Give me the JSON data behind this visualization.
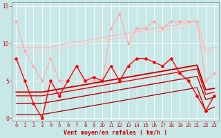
{
  "xlabel": "Vent moyen/en rafales ( km/h )",
  "bg_color": "#c8e8e8",
  "grid_color": "#ffffff",
  "xlim": [
    -0.5,
    23.5
  ],
  "ylim": [
    -0.3,
    15.5
  ],
  "yticks": [
    0,
    5,
    10,
    15
  ],
  "xticks": [
    0,
    1,
    2,
    3,
    4,
    5,
    6,
    7,
    8,
    9,
    10,
    11,
    12,
    13,
    14,
    15,
    16,
    17,
    18,
    19,
    20,
    21,
    22,
    23
  ],
  "lines": [
    {
      "x": [
        0,
        1,
        2,
        3,
        4,
        5,
        6,
        7,
        8,
        9,
        10,
        11,
        12,
        13,
        14,
        15,
        16,
        17,
        18,
        19,
        20,
        21,
        22,
        23
      ],
      "y": [
        13,
        9,
        7,
        5,
        8,
        5,
        5,
        7,
        5,
        5,
        5,
        12,
        14,
        10,
        12,
        12,
        13,
        12,
        13,
        13,
        13,
        13,
        5,
        6
      ],
      "color": "#ffaaaa",
      "lw": 0.8,
      "marker": "D",
      "ms": 1.8,
      "zorder": 3
    },
    {
      "x": [
        0,
        1,
        2,
        3,
        4,
        5,
        6,
        7,
        8,
        9,
        10,
        11,
        12,
        13,
        14,
        15,
        16,
        17,
        18,
        19,
        20,
        21,
        22,
        23
      ],
      "y": [
        9.5,
        9.5,
        9.5,
        9.5,
        9.5,
        9.8,
        10.0,
        10.2,
        10.4,
        10.6,
        10.8,
        11.0,
        11.2,
        11.4,
        11.6,
        11.8,
        12.0,
        12.2,
        12.4,
        12.6,
        12.8,
        13.0,
        9.0,
        9.5
      ],
      "color": "#ffbbbb",
      "lw": 1.0,
      "marker": null,
      "ms": 0,
      "zorder": 2
    },
    {
      "x": [
        0,
        1,
        2,
        3,
        4,
        5,
        6,
        7,
        8,
        9,
        10,
        11,
        12,
        13,
        14,
        15,
        16,
        17,
        18,
        19,
        20,
        21,
        22,
        23
      ],
      "y": [
        9.0,
        9.0,
        9.0,
        9.0,
        9.0,
        9.3,
        9.5,
        9.7,
        9.9,
        10.1,
        10.3,
        10.5,
        10.7,
        10.9,
        11.1,
        11.3,
        11.5,
        11.7,
        11.9,
        12.1,
        12.3,
        12.5,
        8.5,
        9.0
      ],
      "color": "#ffcccc",
      "lw": 0.8,
      "marker": null,
      "ms": 0,
      "zorder": 2
    },
    {
      "x": [
        0,
        1,
        2,
        3,
        4,
        5,
        6,
        7,
        8,
        9,
        10,
        11,
        12,
        13,
        14,
        15,
        16,
        17,
        18,
        19,
        20,
        21,
        22,
        23
      ],
      "y": [
        8,
        5,
        2,
        0,
        5,
        3,
        5,
        7,
        5,
        5.5,
        5,
        7,
        5,
        7,
        8,
        8,
        7.5,
        7,
        8,
        6,
        5,
        3,
        1,
        3
      ],
      "color": "#ff0000",
      "lw": 1.0,
      "marker": "D",
      "ms": 2.0,
      "zorder": 4
    },
    {
      "x": [
        0,
        1,
        2,
        3,
        4,
        5,
        6,
        7,
        8,
        9,
        10,
        11,
        12,
        13,
        14,
        15,
        16,
        17,
        18,
        19,
        20,
        21,
        22,
        23
      ],
      "y": [
        3.5,
        3.5,
        3.5,
        3.5,
        3.7,
        3.9,
        4.1,
        4.3,
        4.5,
        4.7,
        4.9,
        5.1,
        5.3,
        5.5,
        5.7,
        5.9,
        6.1,
        6.3,
        6.5,
        6.7,
        6.9,
        7.1,
        3.8,
        4.0
      ],
      "color": "#cc0000",
      "lw": 1.4,
      "marker": null,
      "ms": 0,
      "zorder": 3
    },
    {
      "x": [
        0,
        1,
        2,
        3,
        4,
        5,
        6,
        7,
        8,
        9,
        10,
        11,
        12,
        13,
        14,
        15,
        16,
        17,
        18,
        19,
        20,
        21,
        22,
        23
      ],
      "y": [
        3.0,
        3.0,
        3.0,
        3.0,
        3.2,
        3.4,
        3.6,
        3.8,
        4.0,
        4.2,
        4.4,
        4.6,
        4.8,
        5.0,
        5.2,
        5.4,
        5.6,
        5.8,
        6.0,
        6.2,
        6.4,
        6.6,
        3.2,
        3.5
      ],
      "color": "#ee0000",
      "lw": 1.0,
      "marker": null,
      "ms": 0,
      "zorder": 3
    },
    {
      "x": [
        0,
        1,
        2,
        3,
        4,
        5,
        6,
        7,
        8,
        9,
        10,
        11,
        12,
        13,
        14,
        15,
        16,
        17,
        18,
        19,
        20,
        21,
        22,
        23
      ],
      "y": [
        2.0,
        2.0,
        2.0,
        2.0,
        2.2,
        2.4,
        2.6,
        2.8,
        3.0,
        3.2,
        3.4,
        3.6,
        3.8,
        4.0,
        4.2,
        4.4,
        4.6,
        4.8,
        5.0,
        5.2,
        5.4,
        5.6,
        2.5,
        2.8
      ],
      "color": "#bb0000",
      "lw": 1.0,
      "marker": null,
      "ms": 0,
      "zorder": 3
    },
    {
      "x": [
        0,
        1,
        2,
        3,
        4,
        5,
        6,
        7,
        8,
        9,
        10,
        11,
        12,
        13,
        14,
        15,
        16,
        17,
        18,
        19,
        20,
        21,
        22,
        23
      ],
      "y": [
        0.5,
        0.5,
        0.5,
        0.5,
        0.7,
        0.9,
        1.1,
        1.3,
        1.5,
        1.7,
        1.9,
        2.1,
        2.3,
        2.5,
        2.7,
        2.9,
        3.1,
        3.3,
        3.5,
        3.7,
        3.9,
        4.1,
        1.0,
        1.5
      ],
      "color": "#aa0000",
      "lw": 0.9,
      "marker": null,
      "ms": 0,
      "zorder": 3
    }
  ],
  "tick_color": "#cc0000",
  "label_color": "#cc0000",
  "tick_fontsize": 5.0,
  "xlabel_fontsize": 6.0
}
